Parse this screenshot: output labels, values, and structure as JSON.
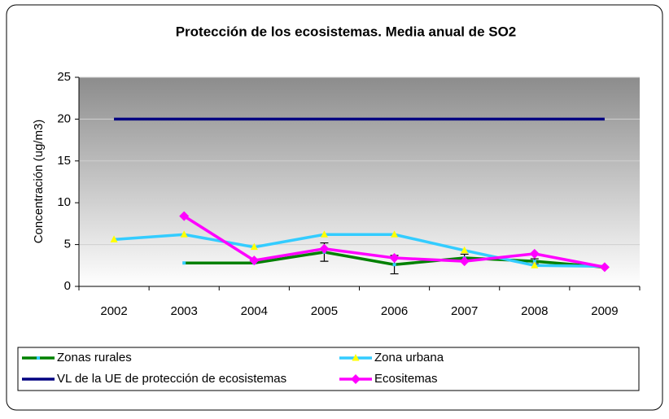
{
  "chart_data": {
    "type": "line",
    "title": "Protección de los ecosistemas. Media anual de SO2",
    "y_label": "Concentración (ug/m3)",
    "categories": [
      "2002",
      "2003",
      "2004",
      "2005",
      "2006",
      "2007",
      "2008",
      "2009"
    ],
    "series": [
      {
        "name": "Zonas  rurales",
        "color": "#008000",
        "marker": "dot",
        "marker_color": "#33ccff",
        "values": [
          null,
          2.8,
          2.8,
          4.1,
          2.6,
          3.4,
          3.0,
          2.3
        ],
        "errors": [
          null,
          null,
          null,
          1.1,
          1.1,
          0.45,
          0.3,
          null
        ]
      },
      {
        "name": "Zona urbana",
        "color": "#33ccff",
        "marker": "triangle",
        "marker_color": "#ffff00",
        "values": [
          5.6,
          6.2,
          4.7,
          6.2,
          6.2,
          4.3,
          2.5,
          2.4
        ]
      },
      {
        "name": "VL de la UE de protección de ecosistemas",
        "color": "#000080",
        "marker": "none",
        "marker_color": "#000080",
        "values": [
          20,
          20,
          20,
          20,
          20,
          20,
          20,
          20
        ]
      },
      {
        "name": "Ecositemas",
        "color": "#ff00ff",
        "marker": "diamond",
        "marker_color": "#ff00ff",
        "values": [
          null,
          8.4,
          3.1,
          4.5,
          3.4,
          3.0,
          3.9,
          2.3
        ]
      }
    ],
    "ylim": [
      0,
      25
    ],
    "yticks": [
      0,
      5,
      10,
      15,
      20,
      25
    ],
    "grid": true
  }
}
